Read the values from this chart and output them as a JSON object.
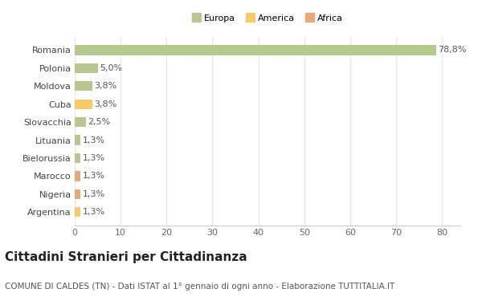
{
  "categories": [
    "Romania",
    "Polonia",
    "Moldova",
    "Cuba",
    "Slovacchia",
    "Lituania",
    "Bielorussia",
    "Marocco",
    "Nigeria",
    "Argentina"
  ],
  "values": [
    78.8,
    5.0,
    3.8,
    3.8,
    2.5,
    1.3,
    1.3,
    1.3,
    1.3,
    1.3
  ],
  "labels": [
    "78,8%",
    "5,0%",
    "3,8%",
    "3,8%",
    "2,5%",
    "1,3%",
    "1,3%",
    "1,3%",
    "1,3%",
    "1,3%"
  ],
  "colors": [
    "#b5c98e",
    "#b5c98e",
    "#b5c98e",
    "#f5ca6a",
    "#b5c98e",
    "#b5c98e",
    "#b5c98e",
    "#e8a878",
    "#e8a878",
    "#f5ca6a"
  ],
  "legend_labels": [
    "Europa",
    "America",
    "Africa"
  ],
  "legend_colors": [
    "#b5c98e",
    "#f5ca6a",
    "#e8a878"
  ],
  "title": "Cittadini Stranieri per Cittadinanza",
  "subtitle": "COMUNE DI CALDES (TN) - Dati ISTAT al 1° gennaio di ogni anno - Elaborazione TUTTITALIA.IT",
  "xlim": [
    0,
    84
  ],
  "xticks": [
    0,
    10,
    20,
    30,
    40,
    50,
    60,
    70,
    80
  ],
  "background_color": "#ffffff",
  "grid_color": "#e8e8e8",
  "title_fontsize": 11,
  "subtitle_fontsize": 7.5,
  "label_fontsize": 8,
  "tick_fontsize": 8
}
